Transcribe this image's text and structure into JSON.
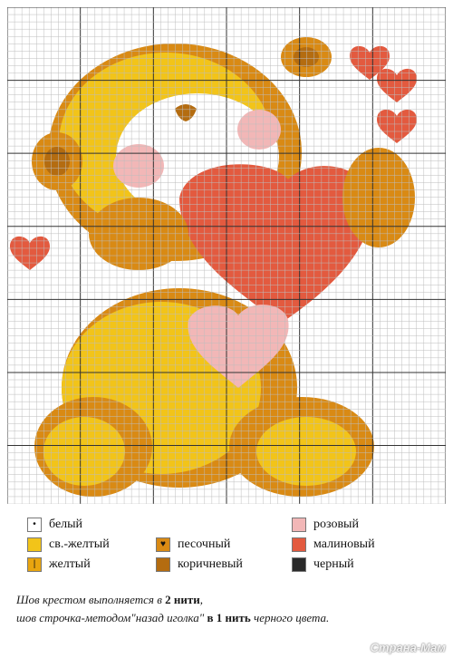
{
  "chart_title": "",
  "palette": {
    "white": "#ffffff",
    "light_yellow": "#f2c419",
    "yellow": "#e9a50f",
    "sand": "#d98a14",
    "brown": "#b46c10",
    "pink": "#f2b7b7",
    "raspberry": "#e35a3f",
    "black": "#2a2a2a",
    "grid_major": "#333333",
    "grid_minor": "#bdbdbd"
  },
  "legend": [
    {
      "key": "white",
      "label": "белый",
      "symbol": "•",
      "color": "#ffffff"
    },
    {
      "key": "light_yellow",
      "label": "св.-желтый",
      "symbol": "",
      "color": "#f2c419"
    },
    {
      "key": "yellow",
      "label": "желтый",
      "symbol": "|",
      "color": "#e9a50f"
    },
    {
      "key": "sand",
      "label": "песочный",
      "symbol": "♥",
      "color": "#d98a14"
    },
    {
      "key": "brown",
      "label": "коричневый",
      "symbol": "",
      "color": "#b46c10"
    },
    {
      "key": "pink",
      "label": "розовый",
      "symbol": "",
      "color": "#f2b7b7"
    },
    {
      "key": "raspberry",
      "label": "малиновый",
      "symbol": "",
      "color": "#e35a3f"
    },
    {
      "key": "black",
      "label": "черный",
      "symbol": "",
      "color": "#2a2a2a"
    }
  ],
  "note": {
    "line1_a": "Шов крестом выполняется",
    "line1_b": "в",
    "line1_c": "2 нити",
    "line1_d": ",",
    "line2_a": "шов строчка-методом\"назад иголка\"",
    "line2_b": "в 1 нить",
    "line2_c": "черного цвета."
  },
  "watermark": "Страна-Мам"
}
